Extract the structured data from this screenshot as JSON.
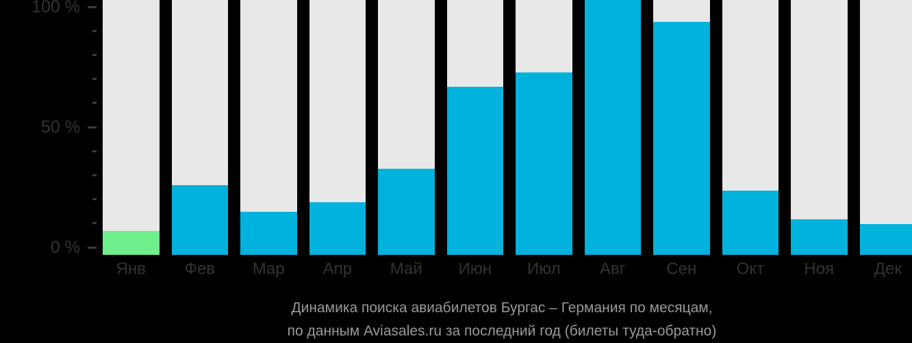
{
  "chart_data": {
    "type": "bar",
    "title": "Динамика поиска авиабилетов Бургас – Германия по месяцам, по данным Aviasales.ru за последний год (билеты туда-обратно)",
    "title_line1": "Динамика поиска авиабилетов Бургас – Германия по месяцам,",
    "title_line2": "по данным Aviasales.ru за последний год (билеты туда-обратно)",
    "categories": [
      "Янв",
      "Фев",
      "Мар",
      "Апр",
      "Май",
      "Июн",
      "Июл",
      "Авг",
      "Сен",
      "Окт",
      "Ноя",
      "Дек"
    ],
    "values": [
      7,
      26,
      15,
      19,
      33,
      67,
      73,
      100,
      94,
      24,
      12,
      10
    ],
    "unit": "%",
    "highlight_index": 0,
    "xlabel": "",
    "ylabel": "",
    "y_axis": {
      "range": [
        0,
        100
      ],
      "major_tick_labels": [
        "0 %",
        "50 %",
        "100 %"
      ],
      "major_tick_values": [
        0,
        50,
        100
      ],
      "minor_tick_step": 10
    },
    "legend": "none",
    "grid": "off"
  },
  "colors": {
    "bar": "#00b2dc",
    "highlight_bar": "#6fee8c",
    "column_background": "#e8e8e8",
    "page_background": "#000000",
    "axis_text": "#333333",
    "tick_mark": "#3a3a3a",
    "title_text": "#9a9a9a"
  }
}
